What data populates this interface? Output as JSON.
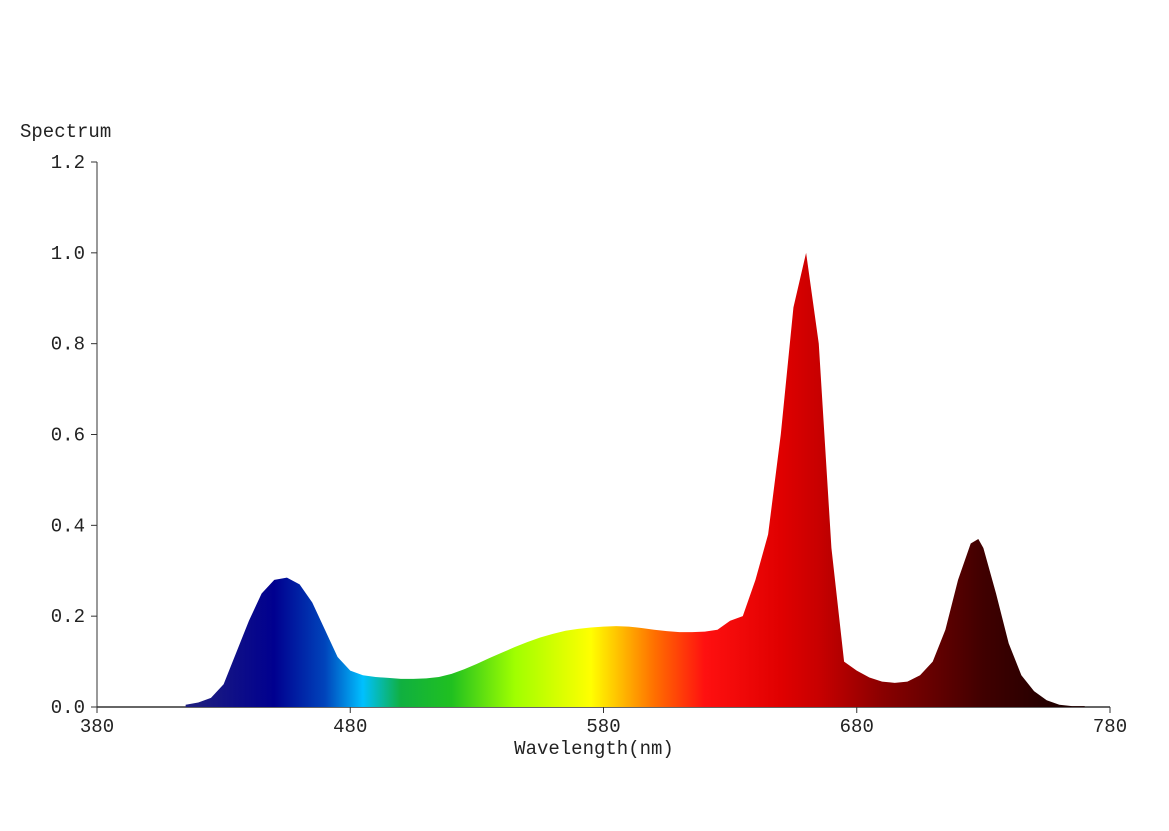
{
  "chart_data": {
    "type": "area",
    "ylabel": "Spectrum",
    "xlabel": "Wavelength(nm)",
    "x": [
      415,
      420,
      425,
      430,
      435,
      440,
      445,
      450,
      455,
      460,
      465,
      470,
      475,
      480,
      485,
      490,
      495,
      500,
      505,
      510,
      515,
      520,
      525,
      530,
      535,
      540,
      545,
      550,
      555,
      560,
      565,
      570,
      575,
      580,
      585,
      590,
      595,
      600,
      605,
      610,
      615,
      620,
      625,
      630,
      635,
      640,
      645,
      650,
      655,
      660,
      665,
      670,
      675,
      680,
      685,
      690,
      695,
      700,
      705,
      710,
      715,
      720,
      725,
      728,
      730,
      735,
      740,
      745,
      750,
      755,
      760,
      765,
      770
    ],
    "values": [
      0.005,
      0.01,
      0.02,
      0.05,
      0.12,
      0.19,
      0.25,
      0.28,
      0.285,
      0.27,
      0.23,
      0.17,
      0.11,
      0.08,
      0.07,
      0.066,
      0.064,
      0.062,
      0.062,
      0.063,
      0.066,
      0.073,
      0.083,
      0.095,
      0.108,
      0.12,
      0.132,
      0.143,
      0.153,
      0.161,
      0.168,
      0.172,
      0.175,
      0.177,
      0.178,
      0.177,
      0.174,
      0.17,
      0.167,
      0.165,
      0.165,
      0.166,
      0.17,
      0.19,
      0.2,
      0.28,
      0.38,
      0.6,
      0.88,
      1.0,
      0.8,
      0.35,
      0.1,
      0.08,
      0.065,
      0.056,
      0.053,
      0.056,
      0.07,
      0.1,
      0.17,
      0.28,
      0.36,
      0.37,
      0.35,
      0.25,
      0.14,
      0.07,
      0.035,
      0.015,
      0.005,
      0.002,
      0.002
    ],
    "color_stops": [
      [
        420,
        "#1c1c80"
      ],
      [
        450,
        "#00008f"
      ],
      [
        470,
        "#0044bb"
      ],
      [
        485,
        "#00c0ff"
      ],
      [
        500,
        "#10b040"
      ],
      [
        520,
        "#20c020"
      ],
      [
        545,
        "#a0ff00"
      ],
      [
        575,
        "#ffff00"
      ],
      [
        600,
        "#ff7000"
      ],
      [
        620,
        "#ff1010"
      ],
      [
        650,
        "#e00000"
      ],
      [
        665,
        "#c80000"
      ],
      [
        690,
        "#8a0000"
      ],
      [
        730,
        "#400000"
      ],
      [
        760,
        "#200000"
      ]
    ],
    "xlim": [
      380,
      780
    ],
    "xticks": [
      380,
      480,
      580,
      680,
      780
    ],
    "ylim": [
      0,
      1.2
    ],
    "yticks": [
      {
        "value": 0,
        "label": "0.0"
      },
      {
        "value": 0.2,
        "label": "0.2"
      },
      {
        "value": 0.4,
        "label": "0.4"
      },
      {
        "value": 0.6,
        "label": "0.6"
      },
      {
        "value": 0.8,
        "label": "0.8"
      },
      {
        "value": 1.0,
        "label": "1.0"
      },
      {
        "value": 1.2,
        "label": "1.2"
      }
    ]
  }
}
